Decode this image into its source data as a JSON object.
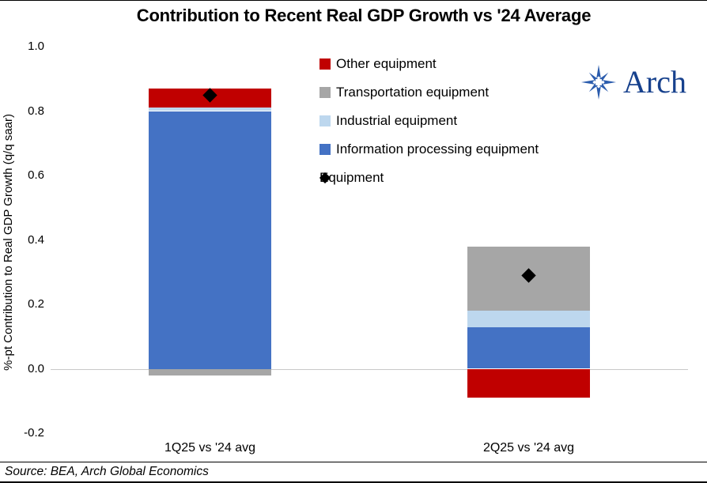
{
  "title": "Contribution to Recent Real GDP Growth vs '24 Average",
  "source": "Source: BEA, Arch Global Economics",
  "logo": {
    "text": "Arch",
    "text_color": "#17418d",
    "icon_color": "#2b5cad"
  },
  "chart_data": {
    "type": "bar",
    "stacked": true,
    "title": "Contribution to Recent Real GDP Growth vs '24 Average",
    "xlabel": "",
    "ylabel": "%-pt Contribution to Real GDP Growth (q/q saar)",
    "ylim": [
      -0.2,
      1.0
    ],
    "yticks": [
      1.0,
      0.8,
      0.6,
      0.4,
      0.2,
      0.0,
      -0.2
    ],
    "ytick_labels": [
      "1.0",
      "0.8",
      "0.6",
      "0.4",
      "0.2",
      "0.0",
      "-0.2"
    ],
    "categories": [
      "1Q25 vs '24 avg",
      "2Q25 vs '24 avg"
    ],
    "series": [
      {
        "name": "Other equipment",
        "color": "#c00000",
        "values": [
          0.06,
          -0.09
        ]
      },
      {
        "name": "Transportation equipment",
        "color": "#a6a6a6",
        "values": [
          -0.02,
          0.2
        ]
      },
      {
        "name": "Industrial equipment",
        "color": "#bdd7ee",
        "values": [
          0.01,
          0.05
        ]
      },
      {
        "name": "Information processing equipment",
        "color": "#4472c4",
        "values": [
          0.8,
          0.13
        ]
      }
    ],
    "marker_series": {
      "name": "Equipment",
      "shape": "diamond",
      "color": "#000000",
      "values": [
        0.85,
        0.29
      ]
    },
    "legend_position": "top-center",
    "grid": false,
    "zero_line": true
  }
}
